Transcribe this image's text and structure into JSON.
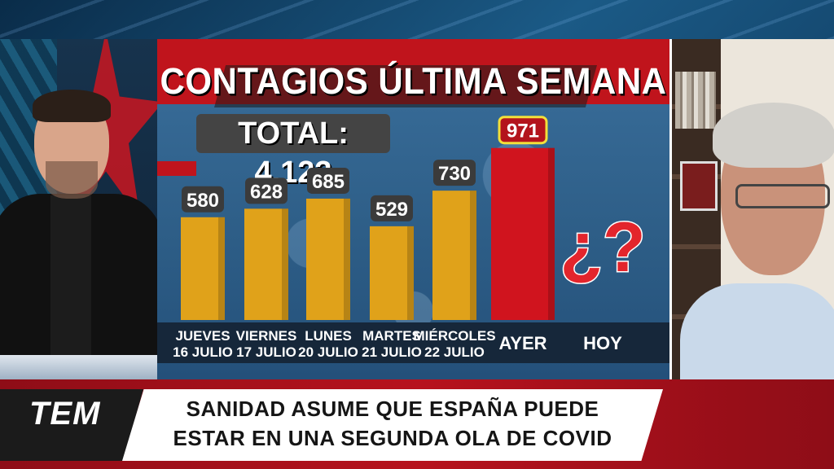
{
  "chart_data": {
    "type": "bar",
    "title": "CONTAGIOS ÚLTIMA SEMANA",
    "total_label": "TOTAL: 4.123",
    "categories": [
      {
        "line1": "JUEVES",
        "line2": "16 JULIO"
      },
      {
        "line1": "VIERNES",
        "line2": "17 JULIO"
      },
      {
        "line1": "LUNES",
        "line2": "20 JULIO"
      },
      {
        "line1": "MARTES",
        "line2": "21 JULIO"
      },
      {
        "line1": "MIÉRCOLES",
        "line2": "22 JULIO"
      },
      {
        "line1": "AYER",
        "line2": ""
      },
      {
        "line1": "HOY",
        "line2": ""
      }
    ],
    "values": [
      580,
      628,
      685,
      529,
      730,
      971,
      null
    ],
    "value_labels": [
      "580",
      "628",
      "685",
      "529",
      "730",
      "971",
      ""
    ],
    "unknown_label": "¿?",
    "ylim": [
      0,
      1000
    ],
    "bar_colors": [
      "#e0a21a",
      "#e0a21a",
      "#e0a21a",
      "#e0a21a",
      "#e0a21a",
      "#d0141e"
    ],
    "grid": false
  },
  "lower_third": {
    "logo": "TEM",
    "headline_line1": "SANIDAD ASUME QUE ESPAÑA PUEDE",
    "headline_line2": "ESTAR EN UNA SEGUNDA OLA DE COVID"
  }
}
